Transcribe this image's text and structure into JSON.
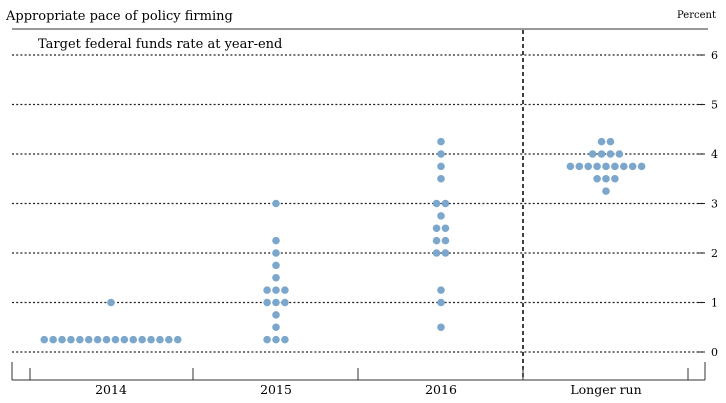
{
  "chart_data": {
    "type": "scatter",
    "title": "Appropriate pace of policy firming",
    "subtitle": "Target federal funds rate at year-end",
    "ylabel": "Percent",
    "ylim": [
      0,
      6
    ],
    "yticks": [
      0,
      1,
      2,
      3,
      4,
      5,
      6
    ],
    "grid": true,
    "categories": [
      "2014",
      "2015",
      "2016",
      "Longer run"
    ],
    "dot_color": "#7ba7cc",
    "series": [
      {
        "category": "2014",
        "points": [
          {
            "y": 0.25,
            "count": 16
          },
          {
            "y": 1.0,
            "count": 1
          }
        ]
      },
      {
        "category": "2015",
        "points": [
          {
            "y": 0.25,
            "count": 3
          },
          {
            "y": 0.5,
            "count": 1
          },
          {
            "y": 0.75,
            "count": 1
          },
          {
            "y": 1.0,
            "count": 3
          },
          {
            "y": 1.25,
            "count": 3
          },
          {
            "y": 1.5,
            "count": 1
          },
          {
            "y": 1.75,
            "count": 1
          },
          {
            "y": 2.0,
            "count": 1
          },
          {
            "y": 2.25,
            "count": 1
          },
          {
            "y": 3.0,
            "count": 1
          }
        ]
      },
      {
        "category": "2016",
        "points": [
          {
            "y": 0.5,
            "count": 1
          },
          {
            "y": 1.0,
            "count": 1
          },
          {
            "y": 1.25,
            "count": 1
          },
          {
            "y": 2.0,
            "count": 2
          },
          {
            "y": 2.25,
            "count": 2
          },
          {
            "y": 2.5,
            "count": 2
          },
          {
            "y": 2.75,
            "count": 1
          },
          {
            "y": 3.0,
            "count": 2
          },
          {
            "y": 3.5,
            "count": 1
          },
          {
            "y": 3.75,
            "count": 1
          },
          {
            "y": 4.0,
            "count": 1
          },
          {
            "y": 4.25,
            "count": 1
          }
        ]
      },
      {
        "category": "Longer run",
        "points": [
          {
            "y": 3.25,
            "count": 1
          },
          {
            "y": 3.5,
            "count": 3
          },
          {
            "y": 3.75,
            "count": 9
          },
          {
            "y": 4.0,
            "count": 4
          },
          {
            "y": 4.25,
            "count": 2
          }
        ]
      }
    ]
  }
}
